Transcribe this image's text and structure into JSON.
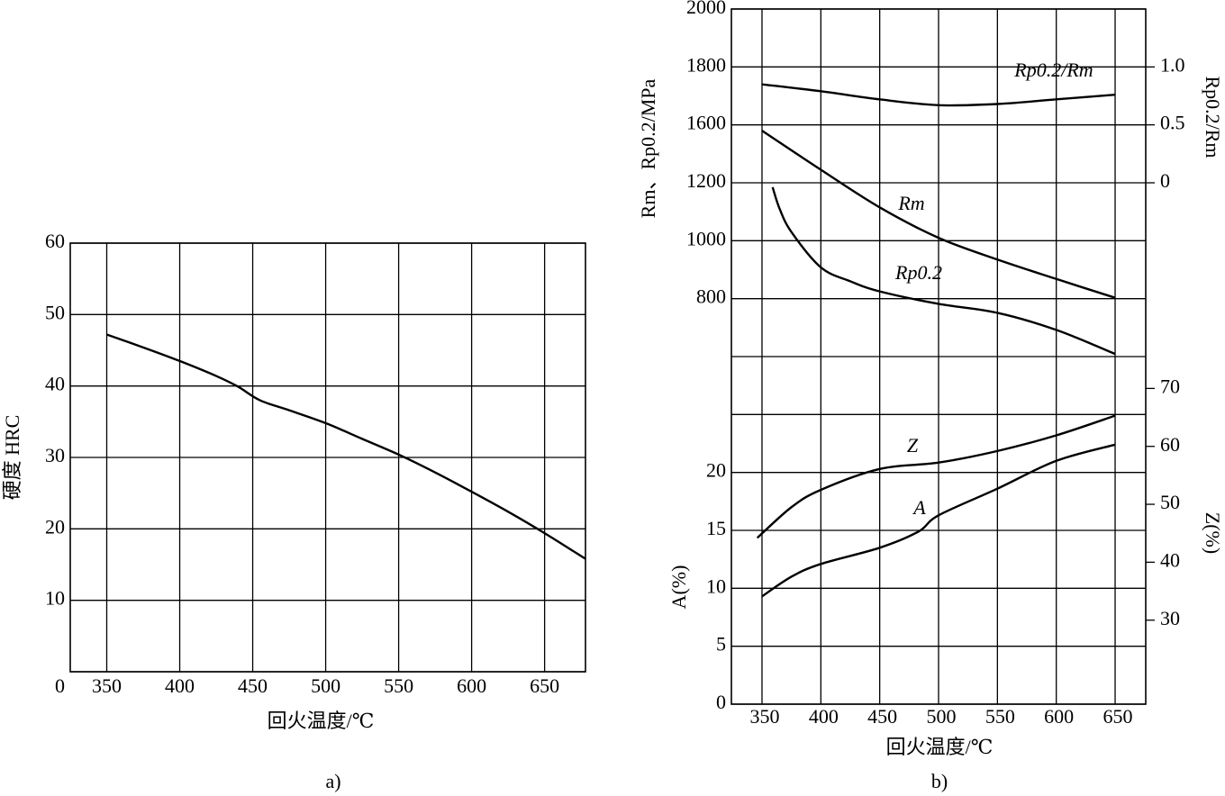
{
  "chart_data": [
    {
      "type": "line",
      "ylabel": "硬度  HRC",
      "xlabel": "回火温度/℃",
      "caption": "a)",
      "xlim": [
        325,
        678
      ],
      "xticks": [
        350,
        400,
        450,
        500,
        550,
        600,
        650
      ],
      "ylim": [
        0,
        60
      ],
      "yticks": [
        0,
        10,
        20,
        30,
        40,
        50,
        60
      ],
      "grid": true,
      "series": [
        {
          "color": "#000000",
          "x": [
            350,
            375,
            400,
            425,
            440,
            455,
            475,
            500,
            525,
            550,
            575,
            600,
            625,
            650,
            678
          ],
          "values": [
            47.2,
            45.4,
            43.5,
            41.4,
            39.9,
            38.0,
            36.6,
            34.8,
            32.6,
            30.4,
            27.9,
            25.2,
            22.4,
            19.4,
            15.8
          ]
        }
      ]
    },
    {
      "type": "line",
      "xlabel": "回火温度/℃",
      "caption": "b)",
      "xlim": [
        324,
        676
      ],
      "xticks": [
        350,
        400,
        450,
        500,
        550,
        600,
        650
      ],
      "grid": true,
      "ylabel": "Rm、Rp0.2/MPa",
      "ylim": [
        600,
        2000
      ],
      "yticks": [
        800,
        1000,
        1200,
        1600,
        1800,
        2000
      ],
      "ybreak": [
        1200,
        1600
      ],
      "y2label": "Rp0.2/Rm",
      "y2lim": [
        0,
        1.5
      ],
      "y2ticks": [
        0,
        0.5,
        {
          "value": 1,
          "label": "1.0"
        }
      ],
      "y3label": "A(%)",
      "y3lim": [
        0,
        30
      ],
      "y3ticks": [
        0,
        5,
        10,
        15,
        20
      ],
      "y3grid": [
        25,
        30
      ],
      "y4label": "Z(%)",
      "y4lim": [
        15.5,
        75.5
      ],
      "y4ticks": [
        30,
        40,
        50,
        60,
        70
      ],
      "series": [
        {
          "name": "Rp0.2/Rm",
          "axis": "y2",
          "color": "#000000",
          "x": [
            350,
            400,
            450,
            500,
            550,
            600,
            650
          ],
          "values": [
            0.85,
            0.79,
            0.72,
            0.67,
            0.68,
            0.72,
            0.76
          ]
        },
        {
          "name": "Rm",
          "axis": "y",
          "color": "#000000",
          "x": [
            350,
            400,
            450,
            500,
            550,
            600,
            650
          ],
          "values": [
            1560,
            1290,
            1115,
            1010,
            935,
            868,
            803
          ]
        },
        {
          "name": "Rp0.2",
          "axis": "y",
          "color": "#000000",
          "x": [
            359,
            365,
            375,
            400,
            425,
            450,
            500,
            550,
            600,
            650
          ],
          "values": [
            1185,
            1110,
            1030,
            908,
            860,
            825,
            782,
            751,
            692,
            609
          ]
        },
        {
          "name": "Z",
          "axis": "y4",
          "color": "#000000",
          "x": [
            346,
            375,
            400,
            450,
            500,
            550,
            600,
            650
          ],
          "values": [
            44.2,
            49.5,
            52.5,
            56.1,
            57.2,
            59.2,
            61.9,
            65.3
          ]
        },
        {
          "name": "A",
          "axis": "y3",
          "color": "#000000",
          "x": [
            350,
            375,
            400,
            450,
            483,
            500,
            550,
            600,
            650
          ],
          "values": [
            9.3,
            11.0,
            12.1,
            13.5,
            14.9,
            16.3,
            18.6,
            21.0,
            22.4
          ]
        }
      ]
    }
  ]
}
